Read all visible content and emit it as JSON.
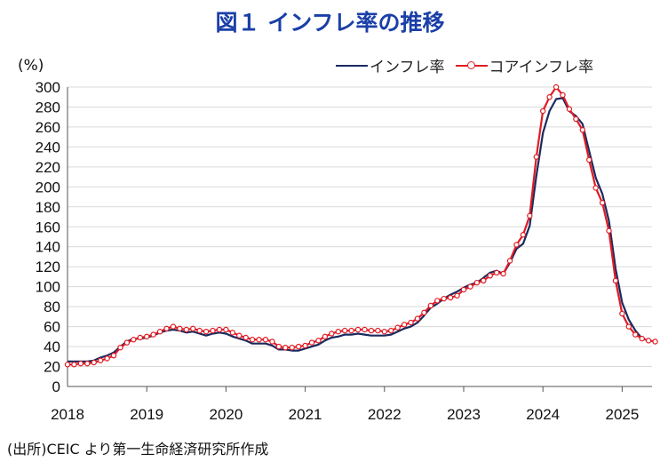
{
  "title": "図１ インフレ率の推移",
  "unit_label": "(%)",
  "source": "(出所)CEIC より第一生命経済研究所作成",
  "chart_data": {
    "type": "line",
    "x_ticks": [
      "2018",
      "2019",
      "2020",
      "2021",
      "2022",
      "2023",
      "2024",
      "2025"
    ],
    "y_ticks": [
      "0",
      "20",
      "40",
      "60",
      "80",
      "100",
      "120",
      "140",
      "160",
      "180",
      "200",
      "220",
      "240",
      "260",
      "280",
      "300"
    ],
    "ylim": [
      0,
      300
    ],
    "xlim": [
      "2018-01",
      "2025-08"
    ],
    "grid": "horizontal",
    "legend_position": "top-right",
    "series": [
      {
        "name": "インフレ率",
        "color": "#1a2a5e",
        "marker": "none",
        "points": [
          [
            "2018-01",
            25
          ],
          [
            "2018-02",
            25
          ],
          [
            "2018-03",
            25
          ],
          [
            "2018-04",
            25
          ],
          [
            "2018-05",
            26
          ],
          [
            "2018-06",
            29
          ],
          [
            "2018-07",
            31
          ],
          [
            "2018-08",
            34
          ],
          [
            "2018-09",
            40
          ],
          [
            "2018-10",
            45
          ],
          [
            "2018-11",
            48
          ],
          [
            "2018-12",
            48
          ],
          [
            "2019-01",
            49
          ],
          [
            "2019-02",
            51
          ],
          [
            "2019-03",
            54
          ],
          [
            "2019-04",
            56
          ],
          [
            "2019-05",
            57
          ],
          [
            "2019-06",
            56
          ],
          [
            "2019-07",
            54
          ],
          [
            "2019-08",
            55
          ],
          [
            "2019-09",
            53
          ],
          [
            "2019-10",
            51
          ],
          [
            "2019-11",
            53
          ],
          [
            "2019-12",
            54
          ],
          [
            "2020-01",
            53
          ],
          [
            "2020-02",
            50
          ],
          [
            "2020-03",
            48
          ],
          [
            "2020-04",
            46
          ],
          [
            "2020-05",
            43
          ],
          [
            "2020-06",
            43
          ],
          [
            "2020-07",
            43
          ],
          [
            "2020-08",
            41
          ],
          [
            "2020-09",
            37
          ],
          [
            "2020-10",
            37
          ],
          [
            "2020-11",
            36
          ],
          [
            "2020-12",
            36
          ],
          [
            "2021-01",
            38
          ],
          [
            "2021-02",
            40
          ],
          [
            "2021-03",
            42
          ],
          [
            "2021-04",
            46
          ],
          [
            "2021-05",
            49
          ],
          [
            "2021-06",
            50
          ],
          [
            "2021-07",
            52
          ],
          [
            "2021-08",
            52
          ],
          [
            "2021-09",
            53
          ],
          [
            "2021-10",
            52
          ],
          [
            "2021-11",
            51
          ],
          [
            "2021-12",
            51
          ],
          [
            "2022-01",
            51
          ],
          [
            "2022-02",
            52
          ],
          [
            "2022-03",
            55
          ],
          [
            "2022-04",
            58
          ],
          [
            "2022-05",
            60
          ],
          [
            "2022-06",
            64
          ],
          [
            "2022-07",
            71
          ],
          [
            "2022-08",
            79
          ],
          [
            "2022-09",
            83
          ],
          [
            "2022-10",
            88
          ],
          [
            "2022-11",
            92
          ],
          [
            "2022-12",
            95
          ],
          [
            "2023-01",
            99
          ],
          [
            "2023-02",
            102
          ],
          [
            "2023-03",
            104
          ],
          [
            "2023-04",
            109
          ],
          [
            "2023-05",
            114
          ],
          [
            "2023-06",
            116
          ],
          [
            "2023-07",
            113
          ],
          [
            "2023-08",
            124
          ],
          [
            "2023-09",
            138
          ],
          [
            "2023-10",
            143
          ],
          [
            "2023-11",
            161
          ],
          [
            "2023-12",
            211
          ],
          [
            "2024-01",
            254
          ],
          [
            "2024-02",
            276
          ],
          [
            "2024-03",
            288
          ],
          [
            "2024-04",
            289
          ],
          [
            "2024-05",
            276
          ],
          [
            "2024-06",
            271
          ],
          [
            "2024-07",
            263
          ],
          [
            "2024-08",
            236
          ],
          [
            "2024-09",
            209
          ],
          [
            "2024-10",
            193
          ],
          [
            "2024-11",
            166
          ],
          [
            "2024-12",
            118
          ],
          [
            "2025-01",
            84
          ],
          [
            "2025-02",
            67
          ],
          [
            "2025-03",
            56
          ],
          [
            "2025-04",
            48
          ]
        ]
      },
      {
        "name": "コアインフレ率",
        "color": "#e01b24",
        "marker": "circle",
        "points": [
          [
            "2018-01",
            22
          ],
          [
            "2018-02",
            22
          ],
          [
            "2018-03",
            23
          ],
          [
            "2018-04",
            23
          ],
          [
            "2018-05",
            24
          ],
          [
            "2018-06",
            26
          ],
          [
            "2018-07",
            28
          ],
          [
            "2018-08",
            31
          ],
          [
            "2018-09",
            39
          ],
          [
            "2018-10",
            44
          ],
          [
            "2018-11",
            47
          ],
          [
            "2018-12",
            49
          ],
          [
            "2019-01",
            50
          ],
          [
            "2019-02",
            52
          ],
          [
            "2019-03",
            55
          ],
          [
            "2019-04",
            58
          ],
          [
            "2019-05",
            60
          ],
          [
            "2019-06",
            58
          ],
          [
            "2019-07",
            57
          ],
          [
            "2019-08",
            58
          ],
          [
            "2019-09",
            56
          ],
          [
            "2019-10",
            55
          ],
          [
            "2019-11",
            56
          ],
          [
            "2019-12",
            57
          ],
          [
            "2020-01",
            57
          ],
          [
            "2020-02",
            54
          ],
          [
            "2020-03",
            51
          ],
          [
            "2020-04",
            49
          ],
          [
            "2020-05",
            47
          ],
          [
            "2020-06",
            47
          ],
          [
            "2020-07",
            47
          ],
          [
            "2020-08",
            45
          ],
          [
            "2020-09",
            40
          ],
          [
            "2020-10",
            39
          ],
          [
            "2020-11",
            39
          ],
          [
            "2020-12",
            40
          ],
          [
            "2021-01",
            41
          ],
          [
            "2021-02",
            44
          ],
          [
            "2021-03",
            46
          ],
          [
            "2021-04",
            50
          ],
          [
            "2021-05",
            53
          ],
          [
            "2021-06",
            55
          ],
          [
            "2021-07",
            56
          ],
          [
            "2021-08",
            56
          ],
          [
            "2021-09",
            57
          ],
          [
            "2021-10",
            57
          ],
          [
            "2021-11",
            56
          ],
          [
            "2021-12",
            56
          ],
          [
            "2022-01",
            55
          ],
          [
            "2022-02",
            56
          ],
          [
            "2022-03",
            59
          ],
          [
            "2022-04",
            62
          ],
          [
            "2022-05",
            64
          ],
          [
            "2022-06",
            68
          ],
          [
            "2022-07",
            74
          ],
          [
            "2022-08",
            81
          ],
          [
            "2022-09",
            86
          ],
          [
            "2022-10",
            88
          ],
          [
            "2022-11",
            89
          ],
          [
            "2022-12",
            91
          ],
          [
            "2023-01",
            97
          ],
          [
            "2023-02",
            100
          ],
          [
            "2023-03",
            104
          ],
          [
            "2023-04",
            106
          ],
          [
            "2023-05",
            111
          ],
          [
            "2023-06",
            114
          ],
          [
            "2023-07",
            113
          ],
          [
            "2023-08",
            126
          ],
          [
            "2023-09",
            142
          ],
          [
            "2023-10",
            152
          ],
          [
            "2023-11",
            171
          ],
          [
            "2023-12",
            230
          ],
          [
            "2024-01",
            276
          ],
          [
            "2024-02",
            290
          ],
          [
            "2024-03",
            300
          ],
          [
            "2024-04",
            292
          ],
          [
            "2024-05",
            278
          ],
          [
            "2024-06",
            268
          ],
          [
            "2024-07",
            257
          ],
          [
            "2024-08",
            227
          ],
          [
            "2024-09",
            199
          ],
          [
            "2024-10",
            184
          ],
          [
            "2024-11",
            156
          ],
          [
            "2024-12",
            106
          ],
          [
            "2025-01",
            73
          ],
          [
            "2025-02",
            60
          ],
          [
            "2025-03",
            52
          ],
          [
            "2025-04",
            48
          ],
          [
            "2025-05",
            46
          ],
          [
            "2025-06",
            45
          ]
        ]
      }
    ]
  }
}
